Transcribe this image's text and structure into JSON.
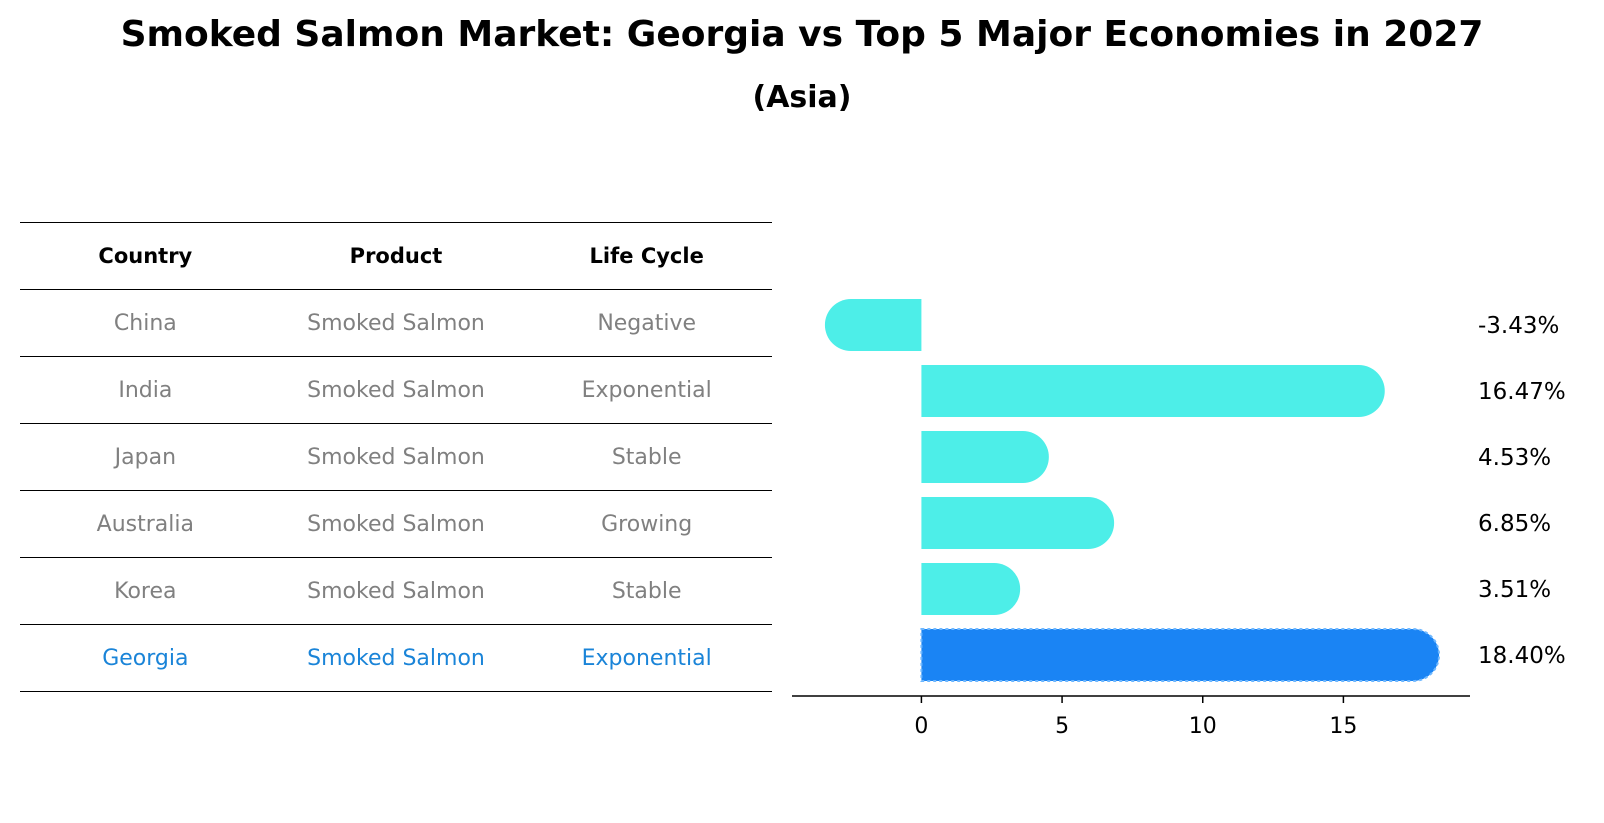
{
  "title": "Smoked Salmon Market: Georgia vs Top 5 Major Economies in 2027",
  "subtitle": "(Asia)",
  "table": {
    "headers": [
      "Country",
      "Product",
      "Life Cycle"
    ],
    "rows": [
      {
        "country": "China",
        "product": "Smoked Salmon",
        "life_cycle": "Negative"
      },
      {
        "country": "India",
        "product": "Smoked Salmon",
        "life_cycle": "Exponential"
      },
      {
        "country": "Japan",
        "product": "Smoked Salmon",
        "life_cycle": "Stable"
      },
      {
        "country": "Australia",
        "product": "Smoked Salmon",
        "life_cycle": "Growing"
      },
      {
        "country": "Korea",
        "product": "Smoked Salmon",
        "life_cycle": "Stable"
      },
      {
        "country": "Georgia",
        "product": "Smoked Salmon",
        "life_cycle": "Exponential"
      }
    ]
  },
  "chart_data": {
    "type": "bar",
    "orientation": "horizontal",
    "categories": [
      "China",
      "India",
      "Japan",
      "Australia",
      "Korea",
      "Georgia"
    ],
    "values": [
      -3.43,
      16.47,
      4.53,
      6.85,
      3.51,
      18.4
    ],
    "labels": [
      "-3.43%",
      "16.47%",
      "4.53%",
      "6.85%",
      "3.51%",
      "18.40%"
    ],
    "highlight": "Georgia",
    "xlim": [
      -4.6,
      19.5
    ],
    "xticks": [
      0,
      5,
      10,
      15
    ],
    "xtick_labels": [
      "0",
      "5",
      "10",
      "15"
    ],
    "colors": {
      "default": "#4deee8",
      "highlight": "#1a84f4"
    }
  }
}
